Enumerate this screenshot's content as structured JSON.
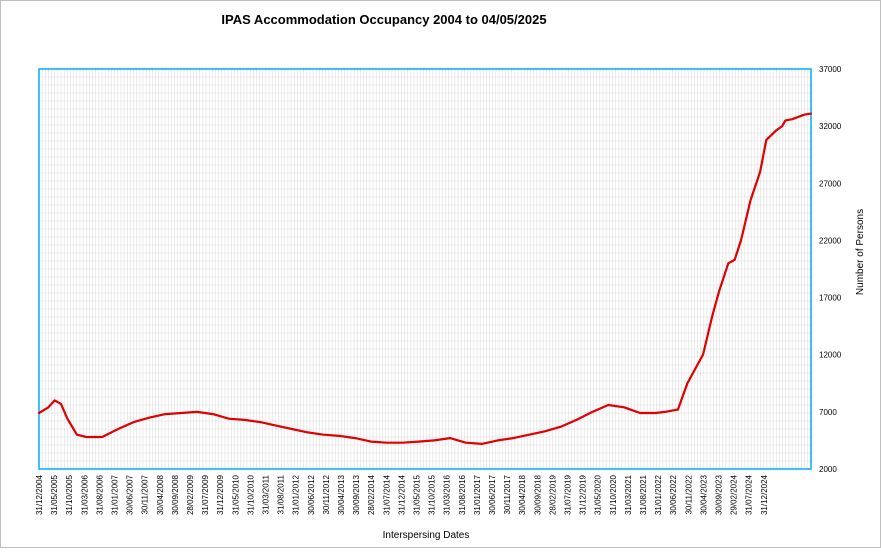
{
  "chart_data": {
    "type": "line",
    "title": "IPAS Accommodation Occupancy 2004 to 04/05/2025",
    "xlabel": "Interspersing Dates",
    "ylabel": "Number of Persons",
    "ylim": [
      2000,
      37000
    ],
    "y_ticks": [
      2000,
      7000,
      12000,
      17000,
      22000,
      27000,
      32000,
      37000
    ],
    "y_tick_labels": [
      "2000",
      "7000",
      "12000",
      "17000",
      "22000",
      "27000",
      "32000",
      "37000"
    ],
    "x_tick_labels": [
      "31/12/2004",
      "31/05/2005",
      "31/10/2005",
      "31/03/2006",
      "31/08/2006",
      "31/01/2007",
      "30/06/2007",
      "30/11/2007",
      "30/04/2008",
      "30/09/2008",
      "28/02/2009",
      "31/07/2009",
      "31/12/2009",
      "31/05/2010",
      "31/10/2010",
      "31/03/2011",
      "31/08/2011",
      "31/01/2012",
      "30/06/2012",
      "30/11/2012",
      "30/04/2013",
      "30/09/2013",
      "28/02/2014",
      "31/07/2014",
      "31/12/2014",
      "31/05/2015",
      "31/10/2015",
      "31/03/2016",
      "31/08/2016",
      "31/01/2017",
      "30/06/2017",
      "30/11/2017",
      "30/04/2018",
      "30/09/2018",
      "28/02/2019",
      "31/07/2019",
      "31/12/2019",
      "31/05/2020",
      "31/10/2020",
      "31/03/2021",
      "31/08/2021",
      "31/01/2022",
      "30/06/2022",
      "30/11/2022",
      "30/04/2023",
      "30/09/2023",
      "29/02/2024",
      "31/07/2024",
      "31/12/2024"
    ],
    "grid": true,
    "legend": "none",
    "line_color": "#e00000",
    "axis_color": "#00aaff",
    "grid_color": "#d9d9d9",
    "series": [
      {
        "x": [
          "2004-12-31",
          "2005-03-31",
          "2005-05-31",
          "2005-07-31",
          "2005-09-30",
          "2005-12-31",
          "2006-03-31",
          "2006-06-30",
          "2006-08-31",
          "2007-01-31",
          "2007-06-30",
          "2007-11-30",
          "2008-04-30",
          "2008-09-30",
          "2009-02-28",
          "2009-07-31",
          "2009-12-31",
          "2010-05-31",
          "2010-10-31",
          "2011-03-31",
          "2011-08-31",
          "2012-01-31",
          "2012-06-30",
          "2012-11-30",
          "2013-04-30",
          "2013-09-30",
          "2014-02-28",
          "2014-07-31",
          "2014-12-31",
          "2015-05-31",
          "2015-10-31",
          "2016-03-31",
          "2016-08-31",
          "2017-01-31",
          "2017-06-30",
          "2017-11-30",
          "2018-04-30",
          "2018-09-30",
          "2019-02-28",
          "2019-07-31",
          "2019-12-31",
          "2020-05-31",
          "2020-10-31",
          "2021-03-31",
          "2021-06-30",
          "2021-08-31",
          "2021-10-31",
          "2022-01-31",
          "2022-04-30",
          "2022-06-30",
          "2022-09-30",
          "2022-11-30",
          "2023-02-28",
          "2023-04-30",
          "2023-06-30",
          "2023-09-30",
          "2023-12-31",
          "2024-02-29",
          "2024-05-31",
          "2024-07-31",
          "2024-08-31",
          "2024-10-31",
          "2024-12-31",
          "2025-02-28",
          "2025-05-04"
        ],
        "y": [
          6900,
          7400,
          8000,
          7700,
          6400,
          5000,
          4800,
          4800,
          4800,
          5500,
          6100,
          6500,
          6800,
          6900,
          7000,
          6800,
          6400,
          6300,
          6100,
          5800,
          5500,
          5200,
          5000,
          4900,
          4700,
          4400,
          4300,
          4300,
          4400,
          4500,
          4700,
          4300,
          4200,
          4500,
          4700,
          5000,
          5300,
          5700,
          6300,
          7000,
          7600,
          7400,
          6900,
          6900,
          7000,
          7100,
          7200,
          9500,
          11000,
          12000,
          15500,
          17500,
          20000,
          20300,
          22000,
          25500,
          28000,
          30800,
          31600,
          32000,
          32500,
          32600,
          32800,
          33000,
          33100
        ]
      }
    ]
  }
}
